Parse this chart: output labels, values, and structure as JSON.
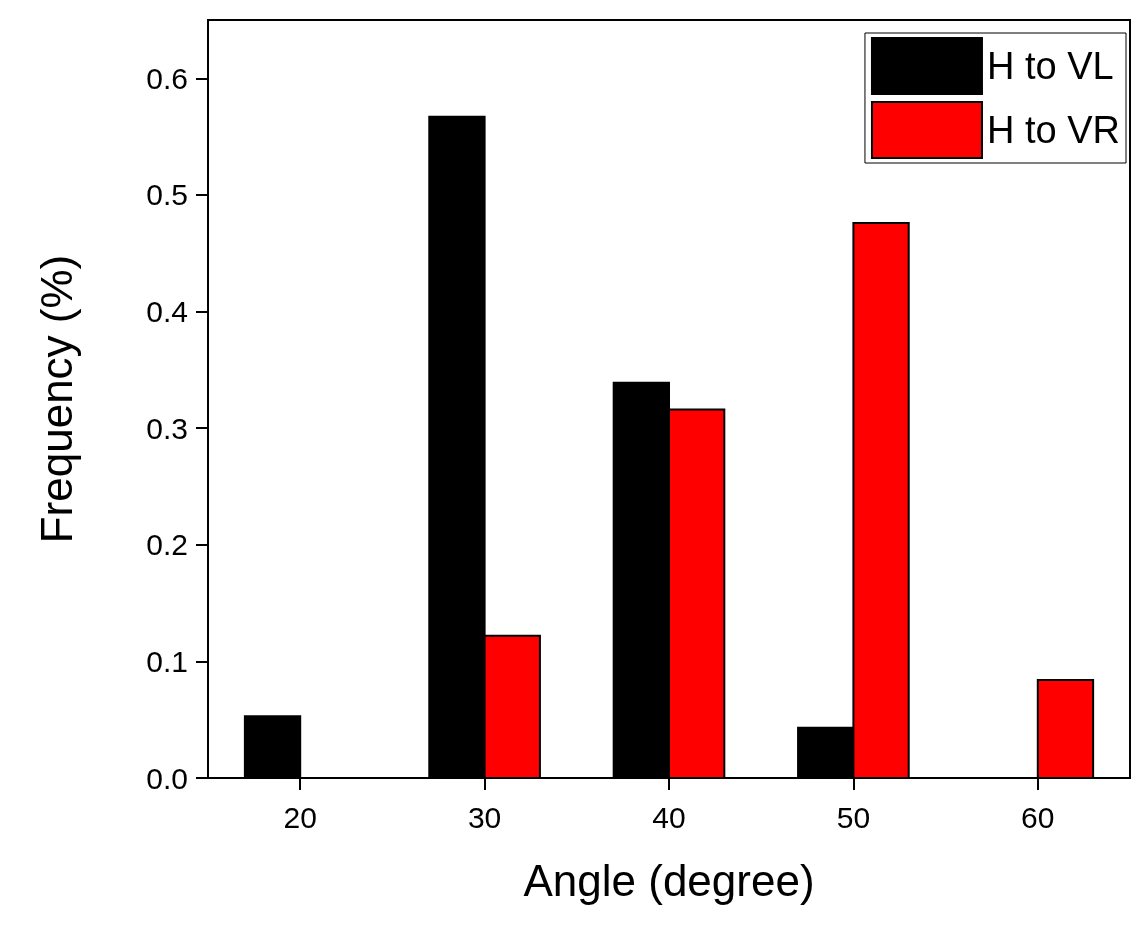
{
  "chart_data": {
    "type": "bar",
    "xlabel": "Angle (degree)",
    "ylabel": "Frequency (%)",
    "x": [
      20,
      30,
      40,
      50,
      60
    ],
    "series": [
      {
        "name": "H to VL",
        "color": "#000000",
        "values": [
          0.053,
          0.567,
          0.339,
          0.043,
          null
        ]
      },
      {
        "name": "H to VR",
        "color": "#ff0000",
        "values": [
          null,
          0.122,
          0.316,
          0.476,
          0.084
        ]
      }
    ],
    "xlim": [
      15,
      65
    ],
    "xticks": [
      20,
      30,
      40,
      50,
      60
    ],
    "ylim": [
      0,
      0.65
    ],
    "yticks": [
      {
        "value": 0,
        "label": "0.0"
      },
      0.1,
      0.2,
      0.3,
      0.4,
      0.5,
      0.6
    ],
    "grid": false,
    "legend": "top right"
  }
}
